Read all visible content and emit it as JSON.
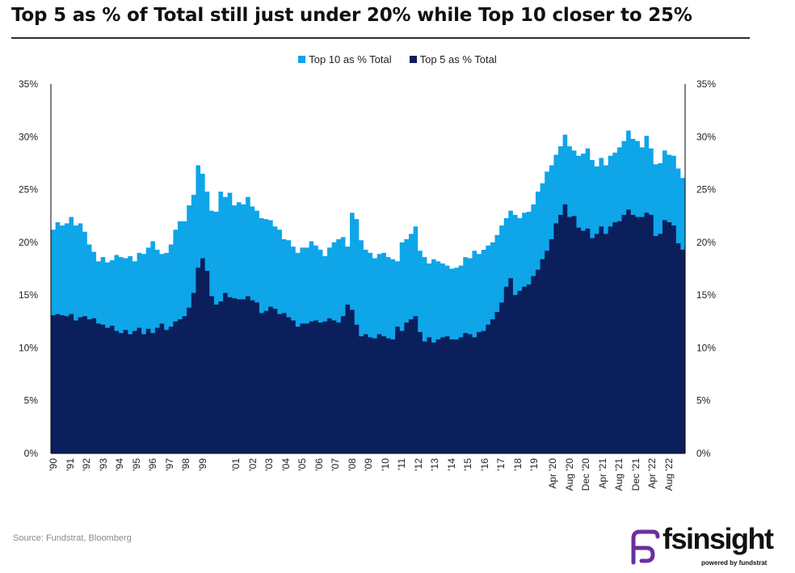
{
  "title": "Top 5 as % of Total still just under 20% while Top 10 closer to 25%",
  "source": "Source:  Fundstrat, Bloomberg",
  "logo": {
    "name": "fsinsight",
    "tagline": "powered by fundstrat"
  },
  "colors": {
    "top10": "#0ea5e9",
    "top5": "#0a1f5c",
    "accent": "#6b2fa0"
  },
  "chart_data": {
    "type": "area",
    "title": "Top 5 as % of Total still just under 20% while Top 10 closer to 25%",
    "xlabel": "",
    "ylabel": "",
    "ylim": [
      0,
      35
    ],
    "yticks": [
      "0%",
      "5%",
      "10%",
      "15%",
      "20%",
      "25%",
      "30%",
      "35%"
    ],
    "y_axes": "left and right",
    "grid": false,
    "legend_position": "top-center",
    "x_tick_labels": [
      "'90",
      "'91",
      "'92",
      "'93",
      "'94",
      "'95",
      "'96",
      "'97",
      "'98",
      "'99",
      "'01",
      "'02",
      "'03",
      "'04",
      "'05",
      "'06",
      "'07",
      "'08",
      "'09",
      "'10",
      "'11",
      "'12",
      "'13",
      "'14",
      "'15",
      "'16",
      "'17",
      "'18",
      "'19",
      "Apr '20",
      "Aug '20",
      "Dec '20",
      "Apr '21",
      "Aug '21",
      "Dec '21",
      "Apr '22",
      "Aug '22"
    ],
    "series": [
      {
        "name": "Top 10 as % Total",
        "color": "#0ea5e9",
        "values": [
          21.2,
          21.9,
          21.6,
          21.8,
          22.4,
          21.6,
          21.8,
          21.0,
          19.8,
          19.1,
          18.2,
          18.6,
          18.1,
          18.3,
          18.8,
          18.6,
          18.5,
          18.7,
          18.2,
          19.0,
          18.9,
          19.5,
          20.1,
          19.3,
          18.9,
          19.0,
          19.8,
          21.2,
          22.0,
          22.0,
          23.5,
          24.5,
          27.3,
          26.5,
          24.8,
          23.0,
          22.9,
          24.8,
          24.3,
          24.7,
          23.5,
          23.8,
          23.6,
          24.3,
          23.4,
          23.0,
          22.3,
          22.2,
          22.1,
          21.5,
          21.2,
          20.3,
          20.2,
          19.6,
          19.0,
          19.5,
          19.5,
          20.1,
          19.7,
          19.3,
          18.7,
          19.5,
          20.0,
          20.3,
          20.5,
          19.6,
          22.8,
          22.2,
          20.2,
          19.3,
          19.0,
          18.5,
          18.9,
          19.0,
          18.6,
          18.4,
          18.2,
          20.0,
          20.3,
          20.8,
          21.5,
          19.2,
          18.6,
          18.0,
          18.4,
          18.2,
          18.0,
          17.8,
          17.5,
          17.6,
          17.8,
          18.6,
          18.5,
          19.2,
          18.9,
          19.3,
          19.7,
          20.0,
          20.7,
          21.6,
          22.3,
          23.0,
          22.6,
          22.3,
          22.8,
          22.9,
          23.6,
          24.8,
          25.6,
          26.7,
          27.3,
          28.3,
          29.1,
          30.2,
          29.1,
          28.7,
          28.2,
          28.4,
          28.9,
          27.8,
          27.2,
          28.0,
          27.3,
          28.2,
          28.5,
          29.0,
          29.6,
          30.6,
          29.8,
          29.6,
          29.0,
          30.1,
          28.9,
          27.4,
          27.5,
          28.7,
          28.3,
          28.2,
          27.0,
          26.1
        ]
      },
      {
        "name": "Top 5 as % Total",
        "color": "#0a1f5c",
        "values": [
          13.1,
          13.2,
          13.1,
          13.0,
          13.2,
          12.6,
          12.9,
          13.0,
          12.7,
          12.8,
          12.3,
          12.2,
          11.9,
          12.1,
          11.6,
          11.4,
          11.7,
          11.3,
          11.6,
          11.9,
          11.3,
          11.8,
          11.4,
          11.9,
          12.3,
          11.7,
          12.0,
          12.5,
          12.7,
          13.0,
          13.8,
          15.2,
          17.6,
          18.5,
          17.3,
          14.9,
          14.1,
          14.4,
          15.2,
          14.8,
          14.7,
          14.6,
          14.6,
          14.9,
          14.5,
          14.3,
          13.3,
          13.5,
          13.9,
          13.7,
          13.2,
          13.3,
          12.9,
          12.6,
          12.0,
          12.3,
          12.3,
          12.5,
          12.6,
          12.4,
          12.5,
          12.8,
          12.6,
          12.4,
          13.0,
          14.1,
          13.6,
          12.2,
          11.1,
          11.3,
          11.0,
          10.9,
          11.3,
          11.1,
          10.9,
          10.8,
          12.0,
          11.6,
          12.4,
          12.7,
          13.0,
          11.5,
          10.6,
          11.0,
          10.5,
          10.8,
          11.0,
          11.1,
          10.8,
          10.8,
          11.0,
          11.4,
          11.3,
          11.0,
          11.5,
          11.6,
          12.2,
          12.7,
          13.4,
          14.3,
          15.8,
          16.6,
          15.0,
          15.4,
          15.8,
          16.0,
          16.8,
          17.4,
          18.4,
          19.2,
          20.3,
          21.8,
          22.6,
          23.6,
          22.4,
          22.5,
          21.4,
          21.1,
          21.3,
          20.4,
          20.8,
          21.5,
          20.8,
          21.5,
          21.9,
          22.0,
          22.6,
          23.1,
          22.6,
          22.4,
          22.4,
          22.8,
          22.6,
          20.6,
          20.8,
          22.1,
          21.9,
          21.6,
          19.9,
          19.3
        ]
      }
    ]
  }
}
